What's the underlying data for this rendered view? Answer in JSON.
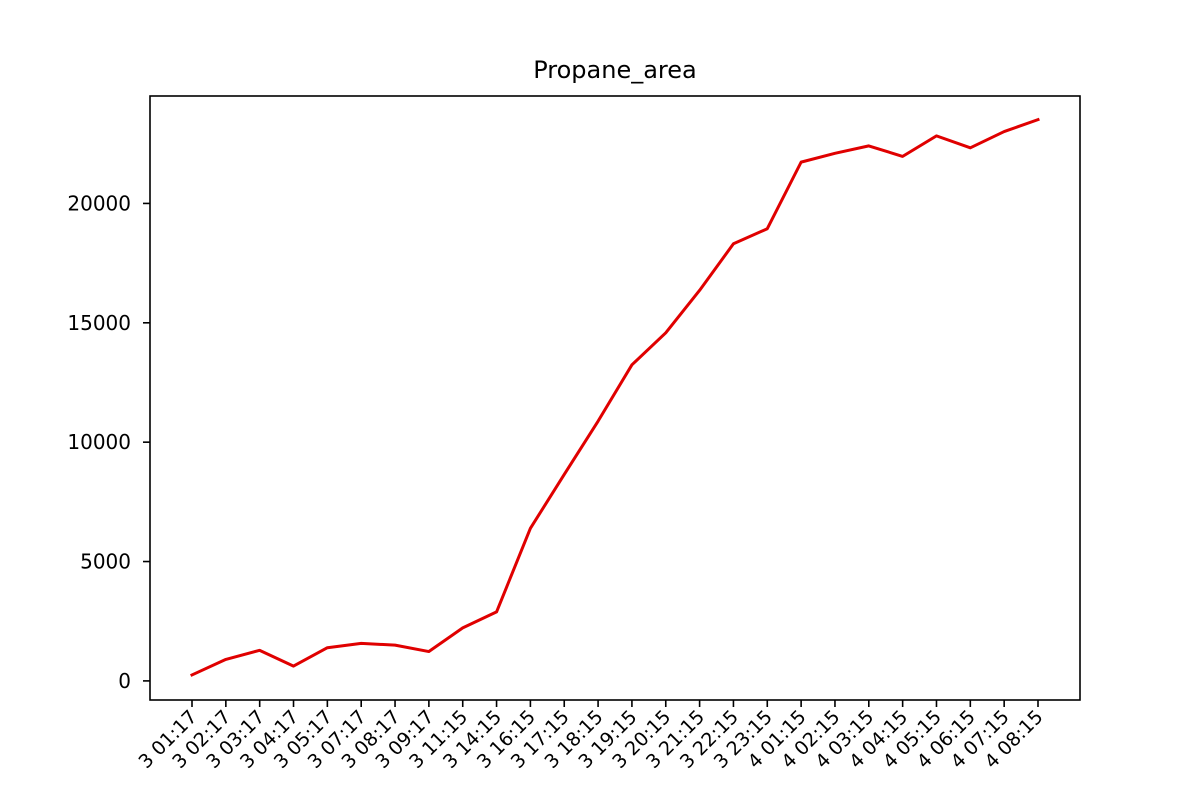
{
  "chart_data": {
    "type": "line",
    "title": "Propane_area",
    "xlabel": "",
    "ylabel": "",
    "ylim": [
      -800,
      24500
    ],
    "yticks": [
      0,
      5000,
      10000,
      15000,
      20000
    ],
    "grid": false,
    "legend": "none",
    "categories": [
      "3 01:17",
      "3 02:17",
      "3 03:17",
      "3 04:17",
      "3 05:17",
      "3 07:17",
      "3 08:17",
      "3 09:17",
      "3 11:15",
      "3 14:15",
      "3 16:15",
      "3 17:15",
      "3 18:15",
      "3 19:15",
      "3 20:15",
      "3 21:15",
      "3 22:15",
      "3 23:15",
      "4 01:15",
      "4 02:15",
      "4 03:15",
      "4 04:15",
      "4 05:15",
      "4 06:15",
      "4 07:15",
      "4 08:15"
    ],
    "series": [
      {
        "color": "#e00000",
        "values": [
          250,
          900,
          1280,
          620,
          1390,
          1570,
          1500,
          1230,
          2220,
          2890,
          6390,
          8650,
          10880,
          13240,
          14580,
          16360,
          18310,
          18940,
          21730,
          22100,
          22410,
          21970,
          22830,
          22330,
          23010,
          23510
        ]
      }
    ]
  }
}
